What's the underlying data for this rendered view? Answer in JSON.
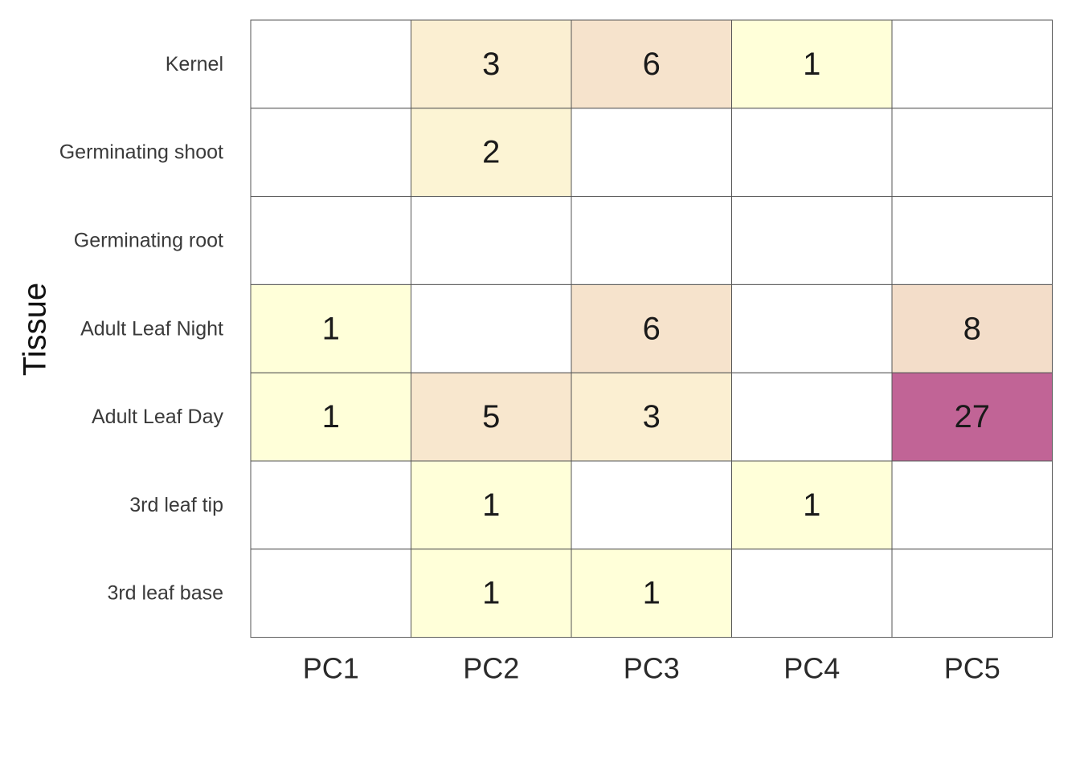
{
  "chart_data": {
    "type": "heatmap",
    "title": "",
    "xlabel": "",
    "ylabel": "Tissue",
    "x_categories": [
      "PC1",
      "PC2",
      "PC3",
      "PC4",
      "PC5"
    ],
    "y_categories": [
      "Kernel",
      "Germinating shoot",
      "Germinating root",
      "Adult Leaf Night",
      "Adult Leaf Day",
      "3rd leaf tip",
      "3rd leaf base"
    ],
    "values": [
      [
        null,
        3,
        6,
        1,
        null
      ],
      [
        null,
        2,
        null,
        null,
        null
      ],
      [
        null,
        null,
        null,
        null,
        null
      ],
      [
        1,
        null,
        6,
        null,
        8
      ],
      [
        1,
        5,
        3,
        null,
        27
      ],
      [
        null,
        1,
        null,
        1,
        null
      ],
      [
        null,
        1,
        1,
        null,
        null
      ]
    ],
    "colorscale": {
      "min": 1,
      "max": 27,
      "colors": [
        "#ffffd9",
        "#fbefd2",
        "#f3dcc8",
        "#efd1c4",
        "#c16496"
      ]
    },
    "empty_color": "#ffffff",
    "grid_color": "#555555",
    "legend": "none"
  }
}
